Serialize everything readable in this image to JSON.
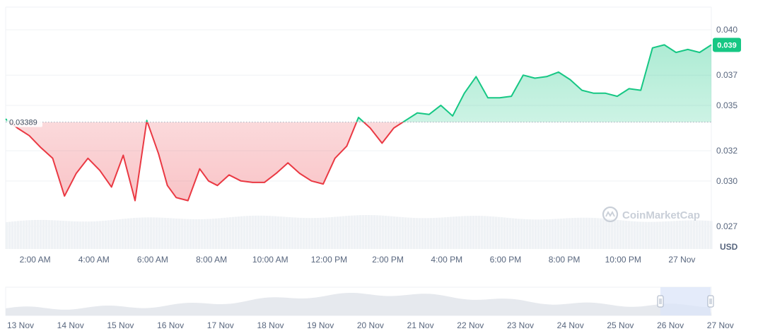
{
  "unit_label": "USD",
  "watermark": "CoinMarketCap",
  "chart_data": {
    "type": "line",
    "reference_price": 0.03389,
    "reference_label": "0.03389",
    "current_price_label": "0.039",
    "ylim": [
      0.0255,
      0.0415
    ],
    "y_ticks": [
      0.04,
      0.037,
      0.035,
      0.032,
      0.03,
      0.027
    ],
    "y_tick_labels": [
      "0.040",
      "0.037",
      "0.035",
      "0.032",
      "0.030",
      "0.027"
    ],
    "x_ticks": [
      2,
      4,
      6,
      8,
      10,
      12,
      14,
      16,
      18,
      20,
      22,
      24
    ],
    "x_tick_labels": [
      "2:00 AM",
      "4:00 AM",
      "6:00 AM",
      "8:00 AM",
      "10:00 AM",
      "12:00 PM",
      "2:00 PM",
      "4:00 PM",
      "6:00 PM",
      "8:00 PM",
      "10:00 PM",
      "27 Nov"
    ],
    "x_range_hours": [
      1.0,
      25.0
    ],
    "x": [
      1.0,
      1.4,
      1.8,
      2.2,
      2.6,
      3.0,
      3.4,
      3.8,
      4.2,
      4.6,
      5.0,
      5.4,
      5.8,
      6.2,
      6.5,
      6.8,
      7.2,
      7.6,
      7.9,
      8.2,
      8.6,
      9.0,
      9.4,
      9.8,
      10.2,
      10.6,
      11.0,
      11.4,
      11.8,
      12.2,
      12.6,
      13.0,
      13.4,
      13.8,
      14.2,
      14.6,
      15.0,
      15.4,
      15.8,
      16.2,
      16.6,
      17.0,
      17.4,
      17.8,
      18.2,
      18.6,
      19.0,
      19.4,
      19.8,
      20.2,
      20.6,
      21.0,
      21.4,
      21.8,
      22.2,
      22.6,
      23.0,
      23.4,
      23.8,
      24.2,
      24.6,
      25.0
    ],
    "y": [
      0.0341,
      0.0335,
      0.033,
      0.0322,
      0.0315,
      0.029,
      0.0305,
      0.0315,
      0.0307,
      0.0296,
      0.0317,
      0.0287,
      0.034,
      0.0318,
      0.0297,
      0.0289,
      0.0287,
      0.0308,
      0.03,
      0.0297,
      0.0304,
      0.03,
      0.0299,
      0.0299,
      0.0305,
      0.0312,
      0.0305,
      0.03,
      0.0298,
      0.0315,
      0.0323,
      0.0342,
      0.0335,
      0.0325,
      0.0335,
      0.034,
      0.0345,
      0.0344,
      0.035,
      0.0343,
      0.0358,
      0.0369,
      0.0355,
      0.0355,
      0.0356,
      0.037,
      0.0368,
      0.0369,
      0.0372,
      0.0367,
      0.036,
      0.0358,
      0.0358,
      0.0356,
      0.0361,
      0.036,
      0.0388,
      0.039,
      0.0385,
      0.0387,
      0.0385,
      0.039
    ],
    "navigator_labels": [
      "13 Nov",
      "14 Nov",
      "15 Nov",
      "16 Nov",
      "17 Nov",
      "18 Nov",
      "19 Nov",
      "20 Nov",
      "21 Nov",
      "22 Nov",
      "23 Nov",
      "24 Nov",
      "25 Nov",
      "26 Nov",
      "27 Nov"
    ],
    "colors": {
      "up": "#16c784",
      "down": "#ea3943",
      "grid": "#eff2f5",
      "volume": "#eff2f5",
      "navigator_fill": "#e6e9ee",
      "navigator_window": "#dbe4f8"
    }
  }
}
